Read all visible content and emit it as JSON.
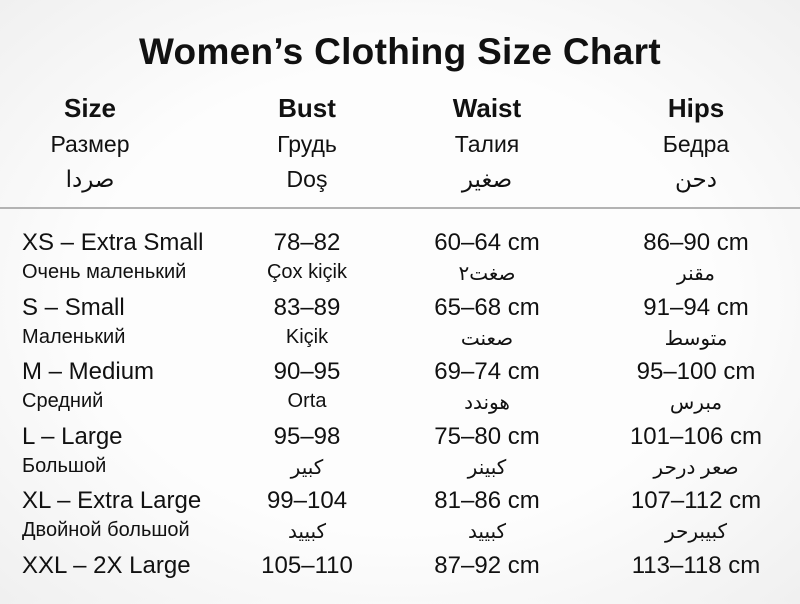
{
  "title": "Women’s Clothing Size Chart",
  "colors": {
    "background": "#fafafa",
    "text": "#111111",
    "divider": "#b3b3b3"
  },
  "table": {
    "columns": [
      {
        "en": "Size",
        "ru": "Размер",
        "other": "صردا"
      },
      {
        "en": "Bust",
        "ru": "Грудь",
        "other": "Doş"
      },
      {
        "en": "Waist",
        "ru": "Талия",
        "other": "صغير"
      },
      {
        "en": "Hips",
        "ru": "Бедра",
        "other": "دحن"
      }
    ],
    "rows": [
      {
        "size": "XS – Extra Small",
        "size_sub": "Очень маленький",
        "bust": "78–82",
        "bust_sub": "Çox kiçik",
        "waist": "60–64 cm",
        "waist_sub": "صغت٢",
        "hips": "86–90 cm",
        "hips_sub": "مقنر"
      },
      {
        "size": "S – Small",
        "size_sub": "Маленький",
        "bust": "83–89",
        "bust_sub": "Kiçik",
        "waist": "65–68 cm",
        "waist_sub": "صعنت",
        "hips": "91–94 cm",
        "hips_sub": "متوسط"
      },
      {
        "size": "M – Medium",
        "size_sub": "Средний",
        "bust": "90–95",
        "bust_sub": "Orta",
        "waist": "69–74 cm",
        "waist_sub": "هوندد",
        "hips": "95–100 cm",
        "hips_sub": "مبرس"
      },
      {
        "size": "L – Large",
        "size_sub": "Большой",
        "bust": "95–98",
        "bust_sub": "كبير",
        "waist": "75–80 cm",
        "waist_sub": "كبينر",
        "hips": "101–106 cm",
        "hips_sub": "صعر درحر"
      },
      {
        "size": "XL – Extra Large",
        "size_sub": "Двойной большой",
        "bust": "99–104",
        "bust_sub": "كبييد",
        "waist": "81–86 cm",
        "waist_sub": "كبييد",
        "hips": "107–112 cm",
        "hips_sub": "كبيبرحر"
      },
      {
        "size": "XXL – 2X Large",
        "size_sub": "",
        "bust": "105–110",
        "bust_sub": "",
        "waist": "87–92 cm",
        "waist_sub": "",
        "hips": "113–118 cm",
        "hips_sub": ""
      }
    ]
  }
}
